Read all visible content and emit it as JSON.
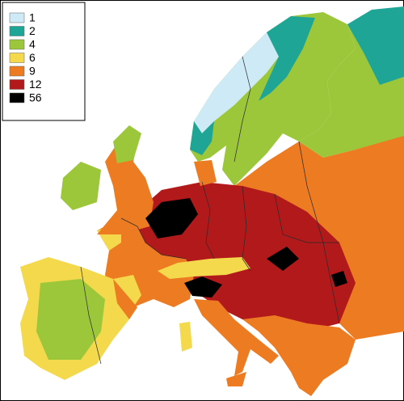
{
  "legend": {
    "items": [
      {
        "label": "1",
        "color": "#cdeaf6"
      },
      {
        "label": "2",
        "color": "#1fa596"
      },
      {
        "label": "4",
        "color": "#9cc73b"
      },
      {
        "label": "6",
        "color": "#f3d94b"
      },
      {
        "label": "9",
        "color": "#ec7b22"
      },
      {
        "label": "12",
        "color": "#b2191b"
      },
      {
        "label": "56",
        "color": "#000000"
      }
    ]
  }
}
